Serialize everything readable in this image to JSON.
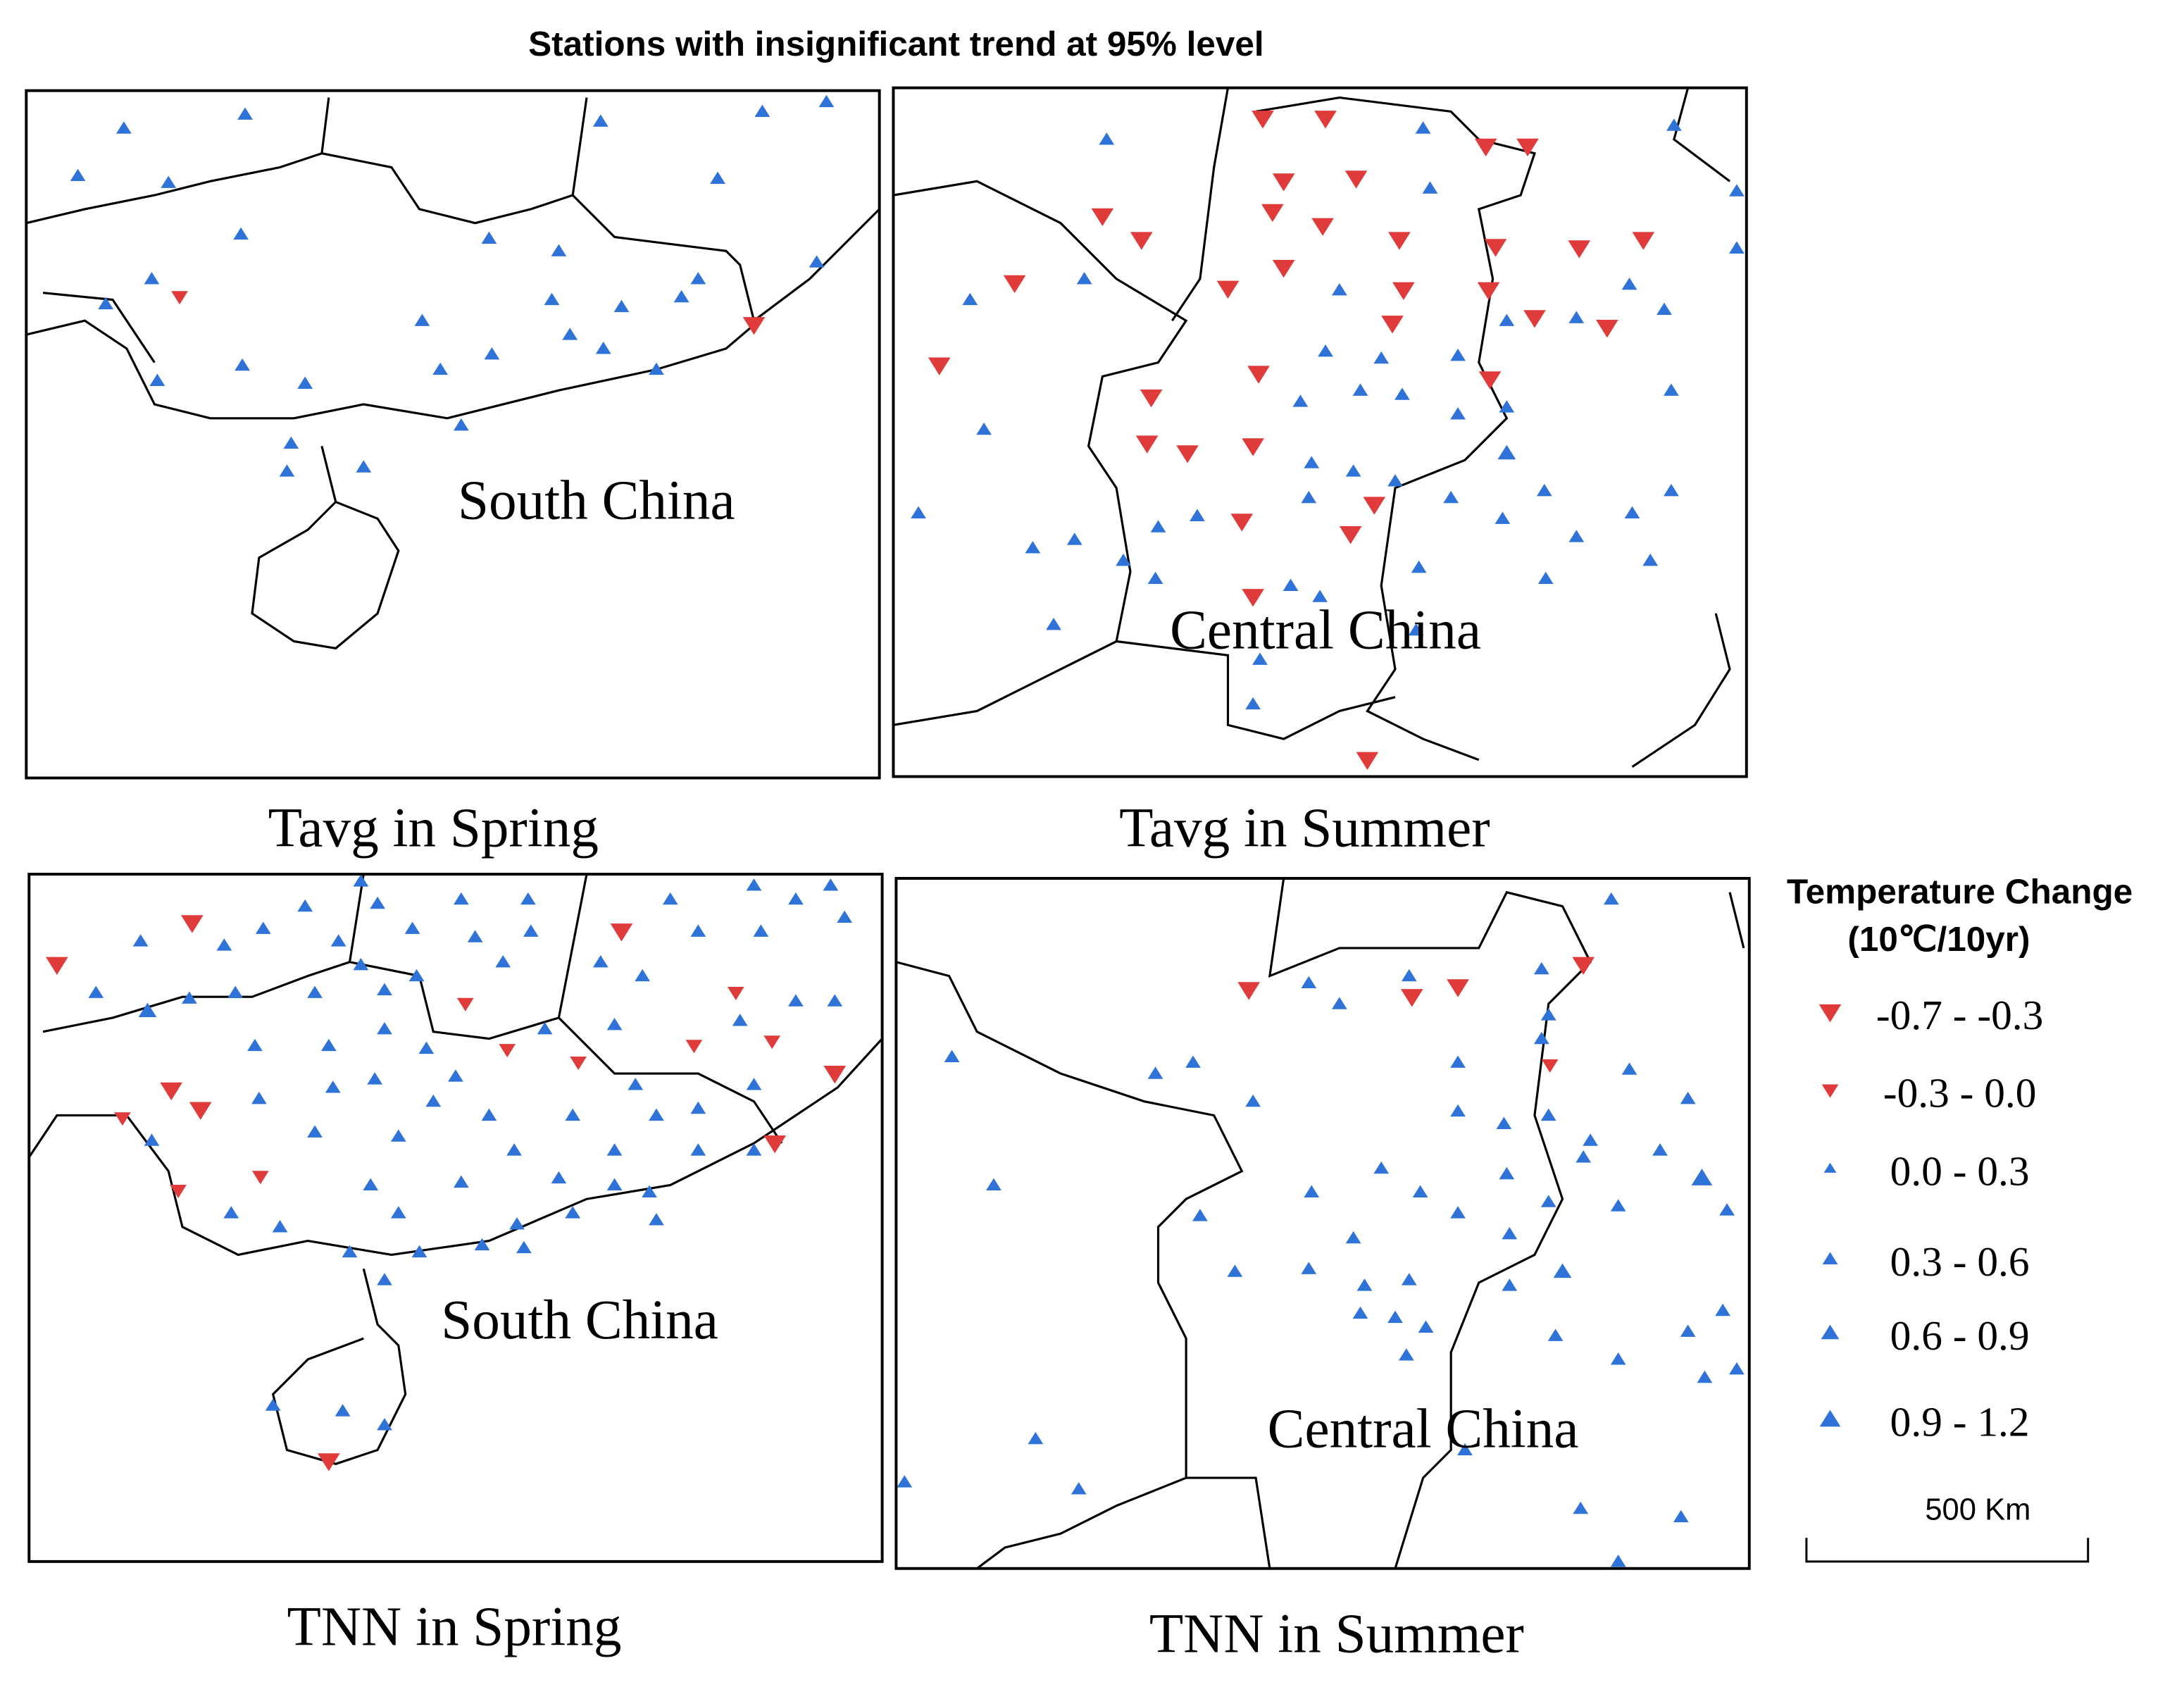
{
  "title": "Stations with insignificant trend at 95% level",
  "panels": [
    {
      "region": "South China",
      "caption": "Tavg in Spring"
    },
    {
      "region": "Central China",
      "caption": "Tavg in Summer"
    },
    {
      "region": "South China",
      "caption": "TNN in Spring"
    },
    {
      "region": "Central China",
      "caption": "TNN in Summer"
    }
  ],
  "legend": {
    "title": "Temperature Change",
    "unit": "(10℃/10yr)",
    "items": [
      {
        "label": "-0.7 - -0.3",
        "color": "#e03b3b"
      },
      {
        "label": "-0.3 - 0.0",
        "color": "#e03b3b"
      },
      {
        "label": "0.0 - 0.3",
        "color": "#2f73d8"
      },
      {
        "label": "0.3 - 0.6",
        "color": "#2f73d8"
      },
      {
        "label": "0.6 - 0.9",
        "color": "#2f73d8"
      },
      {
        "label": "0.9 - 1.2",
        "color": "#2f73d8"
      }
    ]
  },
  "scale_bar": "500 Km"
}
